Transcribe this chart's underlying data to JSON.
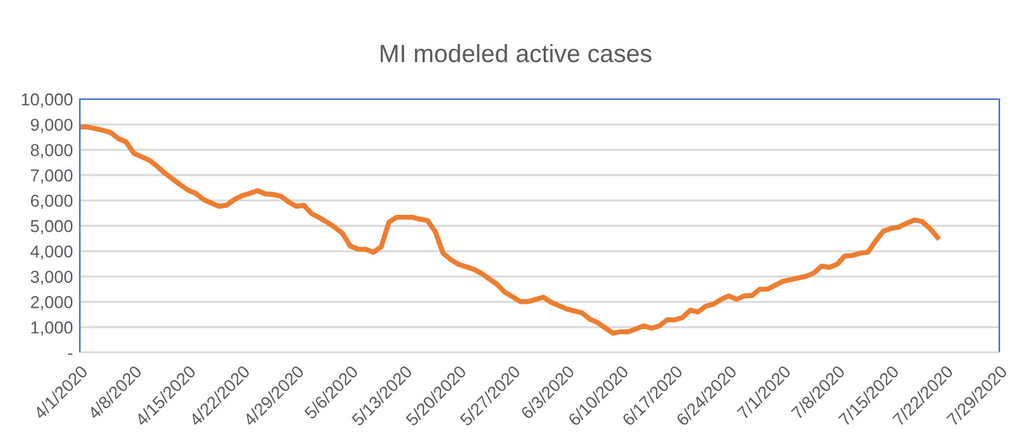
{
  "chart_data": {
    "type": "line",
    "title": "MI modeled active cases",
    "x": [
      "2020-04-01",
      "2020-04-02",
      "2020-04-04",
      "2020-04-05",
      "2020-04-06",
      "2020-04-07",
      "2020-04-08",
      "2020-04-10",
      "2020-04-11",
      "2020-04-12",
      "2020-04-14",
      "2020-04-15",
      "2020-04-16",
      "2020-04-17",
      "2020-04-18",
      "2020-04-19",
      "2020-04-20",
      "2020-04-21",
      "2020-04-22",
      "2020-04-23",
      "2020-04-24",
      "2020-04-25",
      "2020-04-26",
      "2020-04-27",
      "2020-04-28",
      "2020-04-29",
      "2020-04-30",
      "2020-05-01",
      "2020-05-02",
      "2020-05-03",
      "2020-05-04",
      "2020-05-05",
      "2020-05-06",
      "2020-05-07",
      "2020-05-08",
      "2020-05-09",
      "2020-05-10",
      "2020-05-11",
      "2020-05-12",
      "2020-05-14",
      "2020-05-15",
      "2020-05-16",
      "2020-05-17",
      "2020-05-18",
      "2020-05-19",
      "2020-05-20",
      "2020-05-22",
      "2020-05-23",
      "2020-05-25",
      "2020-05-26",
      "2020-05-27",
      "2020-05-28",
      "2020-05-29",
      "2020-05-31",
      "2020-06-01",
      "2020-06-03",
      "2020-06-05",
      "2020-06-06",
      "2020-06-07",
      "2020-06-09",
      "2020-06-10",
      "2020-06-11",
      "2020-06-13",
      "2020-06-14",
      "2020-06-15",
      "2020-06-16",
      "2020-06-17",
      "2020-06-18",
      "2020-06-19",
      "2020-06-20",
      "2020-06-21",
      "2020-06-22",
      "2020-06-23",
      "2020-06-24",
      "2020-06-25",
      "2020-06-26",
      "2020-06-27",
      "2020-06-28",
      "2020-06-29",
      "2020-07-01",
      "2020-07-03",
      "2020-07-04",
      "2020-07-05",
      "2020-07-06",
      "2020-07-07",
      "2020-07-08",
      "2020-07-09",
      "2020-07-10",
      "2020-07-11",
      "2020-07-12",
      "2020-07-13",
      "2020-07-14",
      "2020-07-15",
      "2020-07-16",
      "2020-07-17",
      "2020-07-18",
      "2020-07-19",
      "2020-07-20",
      "2020-07-21"
    ],
    "series": [
      {
        "color": "#ed7d31",
        "values": [
          8900,
          8900,
          8770,
          8680,
          8440,
          8310,
          7860,
          7590,
          7350,
          7080,
          6620,
          6410,
          6280,
          6040,
          5900,
          5770,
          5810,
          6040,
          6190,
          6280,
          6390,
          6260,
          6240,
          6170,
          5950,
          5770,
          5810,
          5480,
          5320,
          5140,
          4940,
          4700,
          4200,
          4080,
          4070,
          3960,
          4170,
          5140,
          5340,
          5340,
          5260,
          5210,
          4770,
          3920,
          3670,
          3480,
          3280,
          3120,
          2690,
          2380,
          2200,
          2010,
          2010,
          2180,
          1980,
          1720,
          1560,
          1320,
          1180,
          760,
          820,
          820,
          1050,
          960,
          1050,
          1290,
          1290,
          1380,
          1670,
          1600,
          1830,
          1910,
          2100,
          2230,
          2100,
          2230,
          2250,
          2500,
          2500,
          2810,
          2940,
          3010,
          3140,
          3410,
          3360,
          3480,
          3810,
          3830,
          3920,
          3960,
          4410,
          4790,
          4900,
          4950,
          5100,
          5230,
          5170,
          4900,
          4540
        ]
      }
    ],
    "xlim": [
      "2020-04-01",
      "2020-07-29"
    ],
    "xticks": [
      {
        "value": "2020-04-01",
        "label": "4/1/2020"
      },
      {
        "value": "2020-04-08",
        "label": "4/8/2020"
      },
      {
        "value": "2020-04-15",
        "label": "4/15/2020"
      },
      {
        "value": "2020-04-22",
        "label": "4/22/2020"
      },
      {
        "value": "2020-04-29",
        "label": "4/29/2020"
      },
      {
        "value": "2020-05-06",
        "label": "5/6/2020"
      },
      {
        "value": "2020-05-13",
        "label": "5/13/2020"
      },
      {
        "value": "2020-05-20",
        "label": "5/20/2020"
      },
      {
        "value": "2020-05-27",
        "label": "5/27/2020"
      },
      {
        "value": "2020-06-03",
        "label": "6/3/2020"
      },
      {
        "value": "2020-06-10",
        "label": "6/10/2020"
      },
      {
        "value": "2020-06-17",
        "label": "6/17/2020"
      },
      {
        "value": "2020-06-24",
        "label": "6/24/2020"
      },
      {
        "value": "2020-07-01",
        "label": "7/1/2020"
      },
      {
        "value": "2020-07-08",
        "label": "7/8/2020"
      },
      {
        "value": "2020-07-15",
        "label": "7/15/2020"
      },
      {
        "value": "2020-07-22",
        "label": "7/22/2020"
      },
      {
        "value": "2020-07-29",
        "label": "7/29/2020"
      }
    ],
    "ylim": [
      0,
      10000
    ],
    "yticks": [
      {
        "value": 0,
        "label": "-"
      },
      {
        "value": 1000,
        "label": "1,000"
      },
      {
        "value": 2000,
        "label": "2,000"
      },
      {
        "value": 3000,
        "label": "3,000"
      },
      {
        "value": 4000,
        "label": "4,000"
      },
      {
        "value": 5000,
        "label": "5,000"
      },
      {
        "value": 6000,
        "label": "6,000"
      },
      {
        "value": 7000,
        "label": "7,000"
      },
      {
        "value": 8000,
        "label": "8,000"
      },
      {
        "value": 9000,
        "label": "9,000"
      },
      {
        "value": 10000,
        "label": "10,000"
      }
    ],
    "grid": "y",
    "legend": false,
    "marker": "none",
    "line_style": "solid"
  }
}
